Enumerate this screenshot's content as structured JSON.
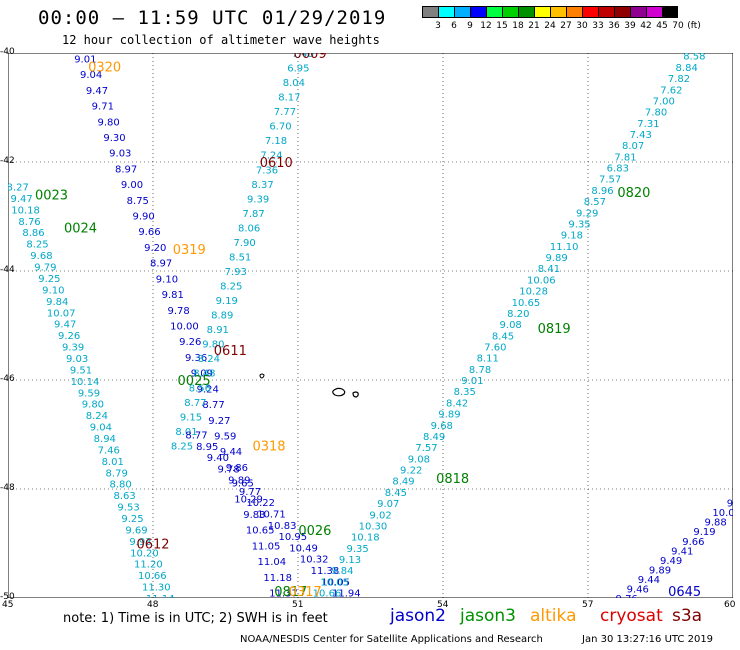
{
  "header": {
    "title": "00:00 – 11:59 UTC 01/29/2019",
    "subtitle": "12 hour collection of altimeter wave heights"
  },
  "color_scale": {
    "unit_label": "(ft)",
    "bins": [
      {
        "label": "3",
        "color": "#808080"
      },
      {
        "label": "6",
        "color": "#00ffff"
      },
      {
        "label": "9",
        "color": "#00b0ff"
      },
      {
        "label": "12",
        "color": "#0000ff"
      },
      {
        "label": "15",
        "color": "#00ff40"
      },
      {
        "label": "18",
        "color": "#00d000"
      },
      {
        "label": "21",
        "color": "#009000"
      },
      {
        "label": "24",
        "color": "#ffff00"
      },
      {
        "label": "27",
        "color": "#ffc000"
      },
      {
        "label": "30",
        "color": "#ff8000"
      },
      {
        "label": "33",
        "color": "#ff0000"
      },
      {
        "label": "36",
        "color": "#c00000"
      },
      {
        "label": "39",
        "color": "#900000"
      },
      {
        "label": "42",
        "color": "#900090"
      },
      {
        "label": "45",
        "color": "#d000d0"
      },
      {
        "label": "70",
        "color": "#000000"
      }
    ]
  },
  "axes": {
    "lat_labels": [
      "-40",
      "-42",
      "-44",
      "-46",
      "-48",
      "-50"
    ],
    "lon_labels": [
      "45",
      "48",
      "51",
      "54",
      "57",
      "60"
    ]
  },
  "map": {
    "lon_range": [
      45,
      60
    ],
    "lat_range": [
      -50,
      -40
    ],
    "colors": {
      "jason2": "#0000cc",
      "jason3": "#008000",
      "altika": "#ff9900",
      "cryosat": "#cc0000",
      "s3a": "#800000",
      "cyan": "#00a8c8"
    },
    "tracks": [
      {
        "color": "cyan",
        "lon0": 45.2,
        "lat0": -42.45,
        "lon1": 48.15,
        "lat1": -50,
        "values": [
          "8.27",
          "9.47",
          "10.18",
          "8.76",
          "8.86",
          "8.25",
          "9.68",
          "9.79",
          "9.25",
          "9.10",
          "9.84",
          "10.07",
          "9.47",
          "9.26",
          "9.39",
          "9.03",
          "9.51",
          "10.14",
          "9.59",
          "9.80",
          "8.24",
          "9.04",
          "8.94",
          "7.46",
          "8.01",
          "8.79",
          "8.80",
          "8.63",
          "9.53",
          "9.25",
          "9.69",
          "9.93",
          "10.20",
          "11.20",
          "10.66",
          "11.30",
          "11.14"
        ]
      },
      {
        "color": "jason2",
        "lon0": 46.6,
        "lat0": -40.1,
        "lon1": 50.7,
        "lat1": -49.9,
        "values": [
          "9.01",
          "9.04",
          "9.47",
          "9.71",
          "9.80",
          "9.30",
          "9.03",
          "8.97",
          "9.00",
          "8.75",
          "9.90",
          "9.66",
          "9.20",
          "8.97",
          "9.10",
          "9.81",
          "9.78",
          "10.00",
          "9.26",
          "9.36",
          "9.09",
          "9.24",
          "8.77",
          "9.27",
          "9.59",
          "9.44",
          "9.86",
          "9.65",
          "10.29",
          "9.83",
          "10.65",
          "11.05",
          "11.04",
          "11.18",
          "11.37"
        ]
      },
      {
        "color": "cyan",
        "lon0": 51.1,
        "lat0": -40.0,
        "lon1": 48.6,
        "lat1": -47.2,
        "values": [
          "7.48",
          "6.95",
          "8.04",
          "8.17",
          "7.77",
          "6.70",
          "7.18",
          "7.24",
          "7.36",
          "8.37",
          "9.39",
          "7.87",
          "8.06",
          "7.90",
          "8.51",
          "7.93",
          "8.25",
          "9.19",
          "8.89",
          "8.91",
          "9.80",
          "8.24",
          "8.48",
          "8.56",
          "8.77",
          "9.15",
          "8.01",
          "8.25"
        ]
      },
      {
        "color": "jason2",
        "lon0": 48.9,
        "lat0": -47.0,
        "lon1": 52.0,
        "lat1": -49.9,
        "values": [
          "8.77",
          "8.95",
          "9.40",
          "9.78",
          "9.89",
          "9.77",
          "10.22",
          "10.71",
          "10.83",
          "10.95",
          "10.49",
          "10.32",
          "11.38",
          "10.05",
          "11.94"
        ]
      },
      {
        "color": "cyan",
        "lon0": 59.2,
        "lat0": -40.05,
        "lon1": 51.6,
        "lat1": -49.9,
        "values": [
          "8.58",
          "8.84",
          "7.82",
          "7.62",
          "7.00",
          "7.80",
          "7.31",
          "7.43",
          "8.07",
          "7.81",
          "6.83",
          "7.57",
          "8.96",
          "8.57",
          "9.29",
          "9.35",
          "9.18",
          "11.10",
          "9.89",
          "8.41",
          "10.06",
          "10.28",
          "10.65",
          "8.20",
          "9.08",
          "8.45",
          "7.60",
          "8.11",
          "8.78",
          "9.01",
          "8.35",
          "8.42",
          "9.89",
          "9.68",
          "8.49",
          "7.57",
          "9.08",
          "9.22",
          "8.49",
          "8.45",
          "9.07",
          "9.02",
          "10.30",
          "10.18",
          "9.35",
          "9.13",
          "9.84",
          "10.05",
          "10.66"
        ]
      },
      {
        "color": "jason2",
        "lon0": 60.1,
        "lat0": -48.25,
        "lon1": 57.8,
        "lat1": -50,
        "values": [
          "9.25",
          "10.02",
          "9.88",
          "9.19",
          "9.66",
          "9.41",
          "9.49",
          "9.89",
          "9.44",
          "9.46",
          "9.76"
        ]
      }
    ],
    "labels": [
      {
        "text": "0320",
        "color": "altika",
        "lon": 47.0,
        "lat": -40.25
      },
      {
        "text": "0609",
        "color": "s3a",
        "lon": 51.25,
        "lat": -40.0
      },
      {
        "text": "0610",
        "color": "s3a",
        "lon": 50.55,
        "lat": -42.0
      },
      {
        "text": "0023",
        "color": "jason3",
        "lon": 45.9,
        "lat": -42.6
      },
      {
        "text": "0024",
        "color": "jason3",
        "lon": 46.5,
        "lat": -43.2
      },
      {
        "text": "0319",
        "color": "altika",
        "lon": 48.75,
        "lat": -43.6
      },
      {
        "text": "0820",
        "color": "jason3",
        "lon": 57.95,
        "lat": -42.55
      },
      {
        "text": "0611",
        "color": "s3a",
        "lon": 49.6,
        "lat": -45.45
      },
      {
        "text": "0025",
        "color": "jason3",
        "lon": 48.85,
        "lat": -46.0
      },
      {
        "text": "0819",
        "color": "jason3",
        "lon": 56.3,
        "lat": -45.05
      },
      {
        "text": "0318",
        "color": "altika",
        "lon": 50.4,
        "lat": -47.2
      },
      {
        "text": "0818",
        "color": "jason3",
        "lon": 54.2,
        "lat": -47.8
      },
      {
        "text": "0612",
        "color": "s3a",
        "lon": 48.0,
        "lat": -49.0
      },
      {
        "text": "0026",
        "color": "jason3",
        "lon": 51.35,
        "lat": -48.75
      },
      {
        "text": "0817",
        "color": "jason3",
        "lon": 50.85,
        "lat": -50.0
      },
      {
        "text": "0317",
        "color": "altika",
        "lon": 51.15,
        "lat": -50.0
      },
      {
        "text": "0645",
        "color": "jason2",
        "lon": 59.0,
        "lat": -50.0
      }
    ]
  },
  "note": "note:  1) Time is in UTC; 2) SWH is in feet",
  "legend": [
    {
      "name": "jason2",
      "color": "#0000cc"
    },
    {
      "name": "jason3",
      "color": "#009000"
    },
    {
      "name": "altika",
      "color": "#ff9900"
    },
    {
      "name": "cryosat",
      "color": "#dd0000"
    },
    {
      "name": "s3a",
      "color": "#800000"
    }
  ],
  "footer": {
    "credit": "NOAA/NESDIS Center for Satellite Applications and Research",
    "timestamp": "Jan 30 13:27:16 UTC 2019"
  }
}
